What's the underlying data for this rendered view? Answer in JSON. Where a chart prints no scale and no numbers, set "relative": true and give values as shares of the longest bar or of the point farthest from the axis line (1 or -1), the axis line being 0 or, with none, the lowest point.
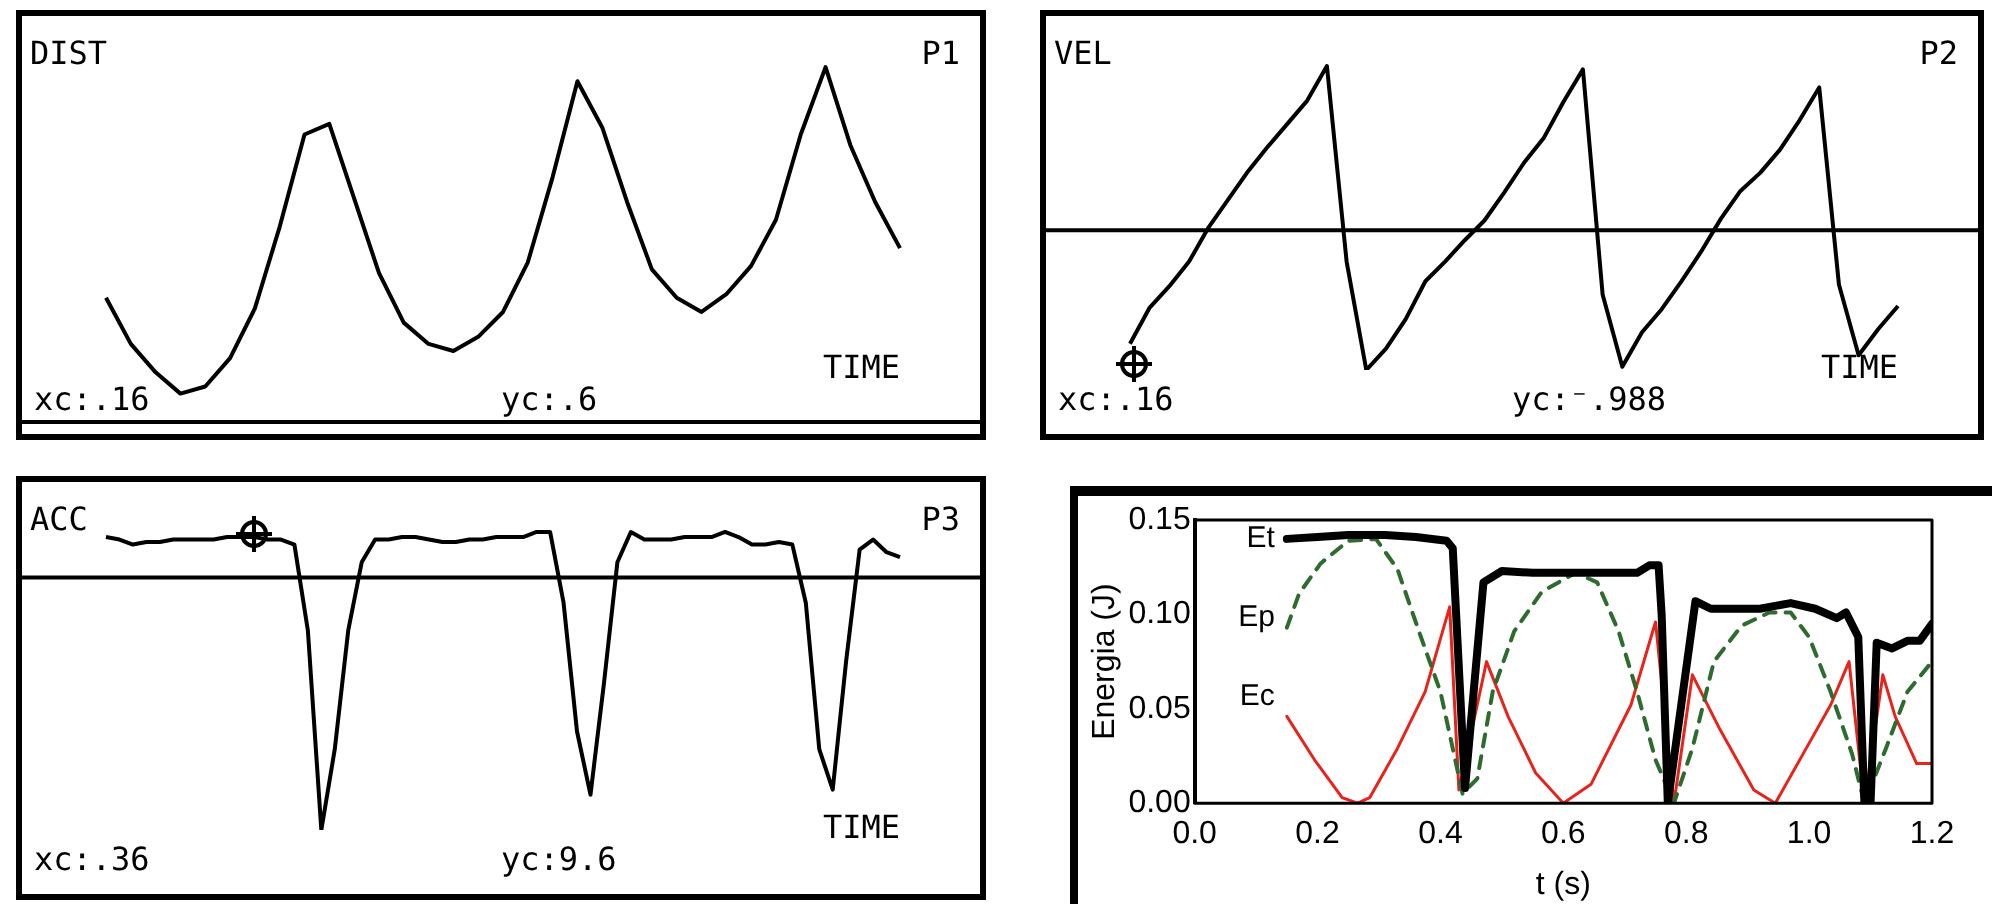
{
  "chart_data": [
    {
      "type": "line",
      "relative": true,
      "title": "P1",
      "ylabel": "DIST",
      "xlabel": "TIME",
      "annotations": [
        "xc:.16",
        "yc:.6"
      ],
      "categories": [
        null,
        null,
        null,
        null,
        null,
        null,
        null,
        null,
        null,
        null,
        null,
        null,
        null,
        null,
        null,
        null,
        null,
        null,
        null,
        null,
        null,
        null,
        null,
        null,
        null,
        null,
        null,
        null,
        null,
        null,
        null,
        null,
        null
      ],
      "series": [
        {
          "color": "#000000",
          "values": [
            0.35,
            0.22,
            0.14,
            0.08,
            0.1,
            0.18,
            0.32,
            0.55,
            0.81,
            0.84,
            0.63,
            0.42,
            0.28,
            0.22,
            0.2,
            0.24,
            0.31,
            0.45,
            0.69,
            0.96,
            0.83,
            0.62,
            0.43,
            0.35,
            0.31,
            0.36,
            0.44,
            0.57,
            0.81,
            1,
            0.78,
            0.62,
            0.49
          ]
        }
      ]
    },
    {
      "type": "line",
      "relative": true,
      "title": "P2",
      "ylabel": "VEL",
      "xlabel": "TIME",
      "annotations": [
        "xc:.16",
        "yc:⁻.988"
      ],
      "categories": [
        null,
        null,
        null,
        null,
        null,
        null,
        null,
        null,
        null,
        null,
        null,
        null,
        null,
        null,
        null,
        null,
        null,
        null,
        null,
        null,
        null,
        null,
        null,
        null,
        null,
        null,
        null,
        null,
        null,
        null,
        null,
        null,
        null,
        null,
        null,
        null,
        null,
        null,
        null,
        null
      ],
      "series": [
        {
          "color": "#000000",
          "values": [
            -0.69,
            -0.47,
            -0.34,
            -0.19,
            0.02,
            0.19,
            0.36,
            0.51,
            0.65,
            0.79,
            1,
            -0.19,
            -0.85,
            -0.72,
            -0.54,
            -0.31,
            -0.19,
            -0.06,
            0.06,
            0.23,
            0.41,
            0.56,
            0.78,
            0.98,
            -0.39,
            -0.83,
            -0.62,
            -0.48,
            -0.31,
            -0.13,
            0.07,
            0.24,
            0.35,
            0.49,
            0.67,
            0.87,
            -0.33,
            -0.76,
            -0.6,
            -0.46
          ]
        }
      ]
    },
    {
      "type": "line",
      "relative": true,
      "title": "P3",
      "ylabel": "ACC",
      "xlabel": "TIME",
      "annotations": [
        "xc:.36",
        "yc:9.6"
      ],
      "categories": [
        null,
        null,
        null,
        null,
        null,
        null,
        null,
        null,
        null,
        null,
        null,
        null,
        null,
        null,
        null,
        null,
        null,
        null,
        null,
        null,
        null,
        null,
        null,
        null,
        null,
        null,
        null,
        null,
        null,
        null,
        null,
        null,
        null,
        null,
        null,
        null,
        null,
        null,
        null,
        null,
        null,
        null,
        null,
        null,
        null,
        null,
        null,
        null,
        null,
        null,
        null,
        null,
        null,
        null,
        null,
        null,
        null,
        null,
        null,
        null
      ],
      "series": [
        {
          "color": "#000000",
          "values": [
            0.16,
            0.15,
            0.13,
            0.14,
            0.14,
            0.15,
            0.15,
            0.15,
            0.15,
            0.16,
            0.16,
            0.16,
            0.15,
            0.15,
            0.13,
            -0.21,
            -1,
            -0.68,
            -0.21,
            0.06,
            0.15,
            0.15,
            0.16,
            0.16,
            0.15,
            0.14,
            0.14,
            0.15,
            0.15,
            0.16,
            0.16,
            0.16,
            0.18,
            0.18,
            -0.1,
            -0.61,
            -0.86,
            -0.42,
            0.06,
            0.18,
            0.15,
            0.15,
            0.15,
            0.16,
            0.16,
            0.16,
            0.18,
            0.16,
            0.13,
            0.13,
            0.14,
            0.13,
            -0.1,
            -0.68,
            -0.84,
            -0.33,
            0.11,
            0.15,
            0.1,
            0.08
          ]
        }
      ]
    },
    {
      "type": "line",
      "xlabel": "t (s)",
      "ylabel": "Energia (J)",
      "xlim": [
        0,
        1.2
      ],
      "xticks": [
        {
          "value": 0,
          "label": "0.0"
        },
        {
          "value": 0.2,
          "label": "0.2"
        },
        {
          "value": 0.4,
          "label": "0.4"
        },
        {
          "value": 0.6,
          "label": "0.6"
        },
        {
          "value": 0.8,
          "label": "0.8"
        },
        {
          "value": 1,
          "label": "1.0"
        },
        {
          "value": 1.2,
          "label": "1.2"
        }
      ],
      "ylim": [
        0,
        0.15
      ],
      "yticks": [
        {
          "value": 0,
          "label": "0.00"
        },
        {
          "value": 0.05,
          "label": "0.05"
        },
        {
          "value": 0.1,
          "label": "0.10"
        },
        {
          "value": 0.15,
          "label": "0.15"
        }
      ],
      "series": [
        {
          "name": "Et",
          "color": "#000000",
          "x": [
            0.15,
            0.2,
            0.25,
            0.31,
            0.36,
            0.41,
            0.42,
            0.44,
            0.47,
            0.5,
            0.55,
            0.64,
            0.72,
            0.74,
            0.755,
            0.76,
            0.77,
            0.815,
            0.84,
            0.92,
            0.97,
            1.01,
            1.045,
            1.06,
            1.08,
            1.09,
            1.1,
            1.11,
            1.135,
            1.16,
            1.18,
            1.2
          ],
          "values": [
            0.14,
            0.141,
            0.142,
            0.142,
            0.141,
            0.139,
            0.135,
            0.008,
            0.117,
            0.123,
            0.122,
            0.122,
            0.122,
            0.126,
            0.126,
            0.1,
            0,
            0.107,
            0.103,
            0.103,
            0.106,
            0.103,
            0.098,
            0.101,
            0.088,
            0,
            0,
            0.085,
            0.082,
            0.086,
            0.086,
            0.095
          ]
        },
        {
          "name": "Ep",
          "color": "#2e6b2e",
          "line_style": "dashed",
          "x": [
            0.15,
            0.17,
            0.205,
            0.25,
            0.295,
            0.33,
            0.365,
            0.4,
            0.42,
            0.436,
            0.46,
            0.485,
            0.52,
            0.565,
            0.62,
            0.655,
            0.69,
            0.72,
            0.75,
            0.78,
            0.81,
            0.845,
            0.89,
            0.935,
            0.97,
            1,
            1.035,
            1.07,
            1.09,
            1.125,
            1.16,
            1.2
          ],
          "values": [
            0.093,
            0.111,
            0.127,
            0.139,
            0.14,
            0.124,
            0.091,
            0.059,
            0.029,
            0.005,
            0.013,
            0.059,
            0.091,
            0.112,
            0.122,
            0.117,
            0.091,
            0.059,
            0.023,
            0,
            0.029,
            0.075,
            0.094,
            0.101,
            0.101,
            0.088,
            0.059,
            0.026,
            0,
            0.029,
            0.059,
            0.075
          ]
        },
        {
          "name": "Ec",
          "color": "#e8231c",
          "x": [
            0.15,
            0.195,
            0.24,
            0.265,
            0.285,
            0.33,
            0.375,
            0.415,
            0.43,
            0.475,
            0.51,
            0.555,
            0.6,
            0.645,
            0.71,
            0.75,
            0.78,
            0.81,
            0.855,
            0.91,
            0.945,
            0.99,
            1.035,
            1.065,
            1.09,
            1.12,
            1.14,
            1.175,
            1.2
          ],
          "values": [
            0.046,
            0.023,
            0.003,
            0,
            0.003,
            0.029,
            0.059,
            0.104,
            0.007,
            0.075,
            0.046,
            0.016,
            0,
            0.01,
            0.052,
            0.096,
            0,
            0.068,
            0.039,
            0.007,
            0,
            0.026,
            0.052,
            0.075,
            0,
            0.068,
            0.046,
            0.021,
            0.021
          ]
        }
      ]
    }
  ]
}
